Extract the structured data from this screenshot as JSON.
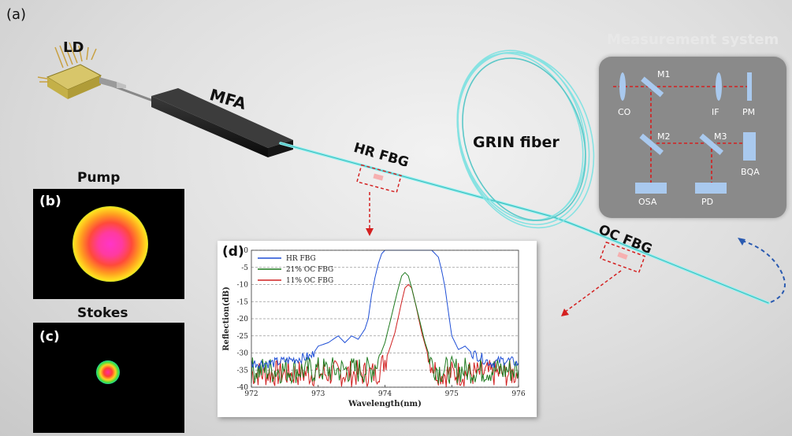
{
  "labels": {
    "panel_a": "(a)",
    "ld": "LD",
    "mfa": "MFA",
    "hr_fbg": "HR FBG",
    "grin_fiber": "GRIN fiber",
    "oc_fbg": "OC FBG",
    "pump": "Pump",
    "panel_b": "(b)",
    "stokes": "Stokes",
    "panel_c": "(c)",
    "panel_d": "(d)"
  },
  "measurement": {
    "title": "Measurement system",
    "components": {
      "co": "CO",
      "m1": "M1",
      "if": "IF",
      "pm": "PM",
      "m2": "M2",
      "m3": "M3",
      "bqa": "BQA",
      "osa": "OSA",
      "pd": "PD"
    }
  },
  "colors": {
    "fiber": "#8ff0f0",
    "beam_path": "#d42020",
    "optics": "#a9c9ee",
    "series_hr": "#1f4fd6",
    "series_21": "#1f7a1f",
    "series_11": "#d02020"
  },
  "chart_data": {
    "type": "line",
    "xlabel": "Wavelength(nm)",
    "ylabel": "Reflection(dB)",
    "xlim": [
      972,
      976
    ],
    "ylim": [
      -40,
      0
    ],
    "x_ticks": [
      "972",
      "973",
      "974",
      "975",
      "976"
    ],
    "y_ticks": [
      "0",
      "-5",
      "-10",
      "-15",
      "-20",
      "-25",
      "-30",
      "-35",
      "-40"
    ],
    "grid": "horizontal dashed",
    "legend": "top-left",
    "series": [
      {
        "name": "HR FBG",
        "x": [
          972.0,
          972.3,
          972.6,
          972.9,
          973.0,
          973.15,
          973.3,
          973.4,
          973.5,
          973.6,
          973.7,
          973.75,
          973.8,
          973.85,
          973.9,
          973.95,
          974.0,
          974.2,
          974.5,
          974.7,
          974.8,
          974.85,
          974.9,
          974.95,
          975.0,
          975.05,
          975.1,
          975.2,
          975.3,
          975.4,
          975.6,
          975.8,
          976.0
        ],
        "y": [
          -33,
          -33,
          -32,
          -31,
          -28,
          -27,
          -25,
          -27,
          -25,
          -26,
          -23,
          -20,
          -13,
          -8,
          -4,
          -1,
          0,
          0,
          0,
          0,
          -2,
          -6,
          -11,
          -18,
          -25,
          -27,
          -29,
          -28,
          -30,
          -31,
          -33,
          -32,
          -33
        ]
      },
      {
        "name": "21% OC FBG",
        "x": [
          972.0,
          973.0,
          973.8,
          973.9,
          974.0,
          974.1,
          974.2,
          974.25,
          974.3,
          974.35,
          974.4,
          974.5,
          974.6,
          974.7,
          974.8,
          975.0,
          976.0
        ],
        "y": [
          -35,
          -35,
          -35,
          -32,
          -27,
          -19,
          -11,
          -7.5,
          -6.5,
          -7.5,
          -11,
          -19,
          -27,
          -33,
          -35,
          -35,
          -35
        ]
      },
      {
        "name": "11% OC FBG",
        "x": [
          972.0,
          973.0,
          973.85,
          973.95,
          974.05,
          974.15,
          974.25,
          974.3,
          974.35,
          974.4,
          974.45,
          974.55,
          974.65,
          974.75,
          974.85,
          975.0,
          976.0
        ],
        "y": [
          -36,
          -36,
          -36,
          -34,
          -30,
          -24,
          -15,
          -11,
          -10,
          -11,
          -15,
          -24,
          -31,
          -35,
          -36,
          -36,
          -36
        ]
      }
    ]
  }
}
